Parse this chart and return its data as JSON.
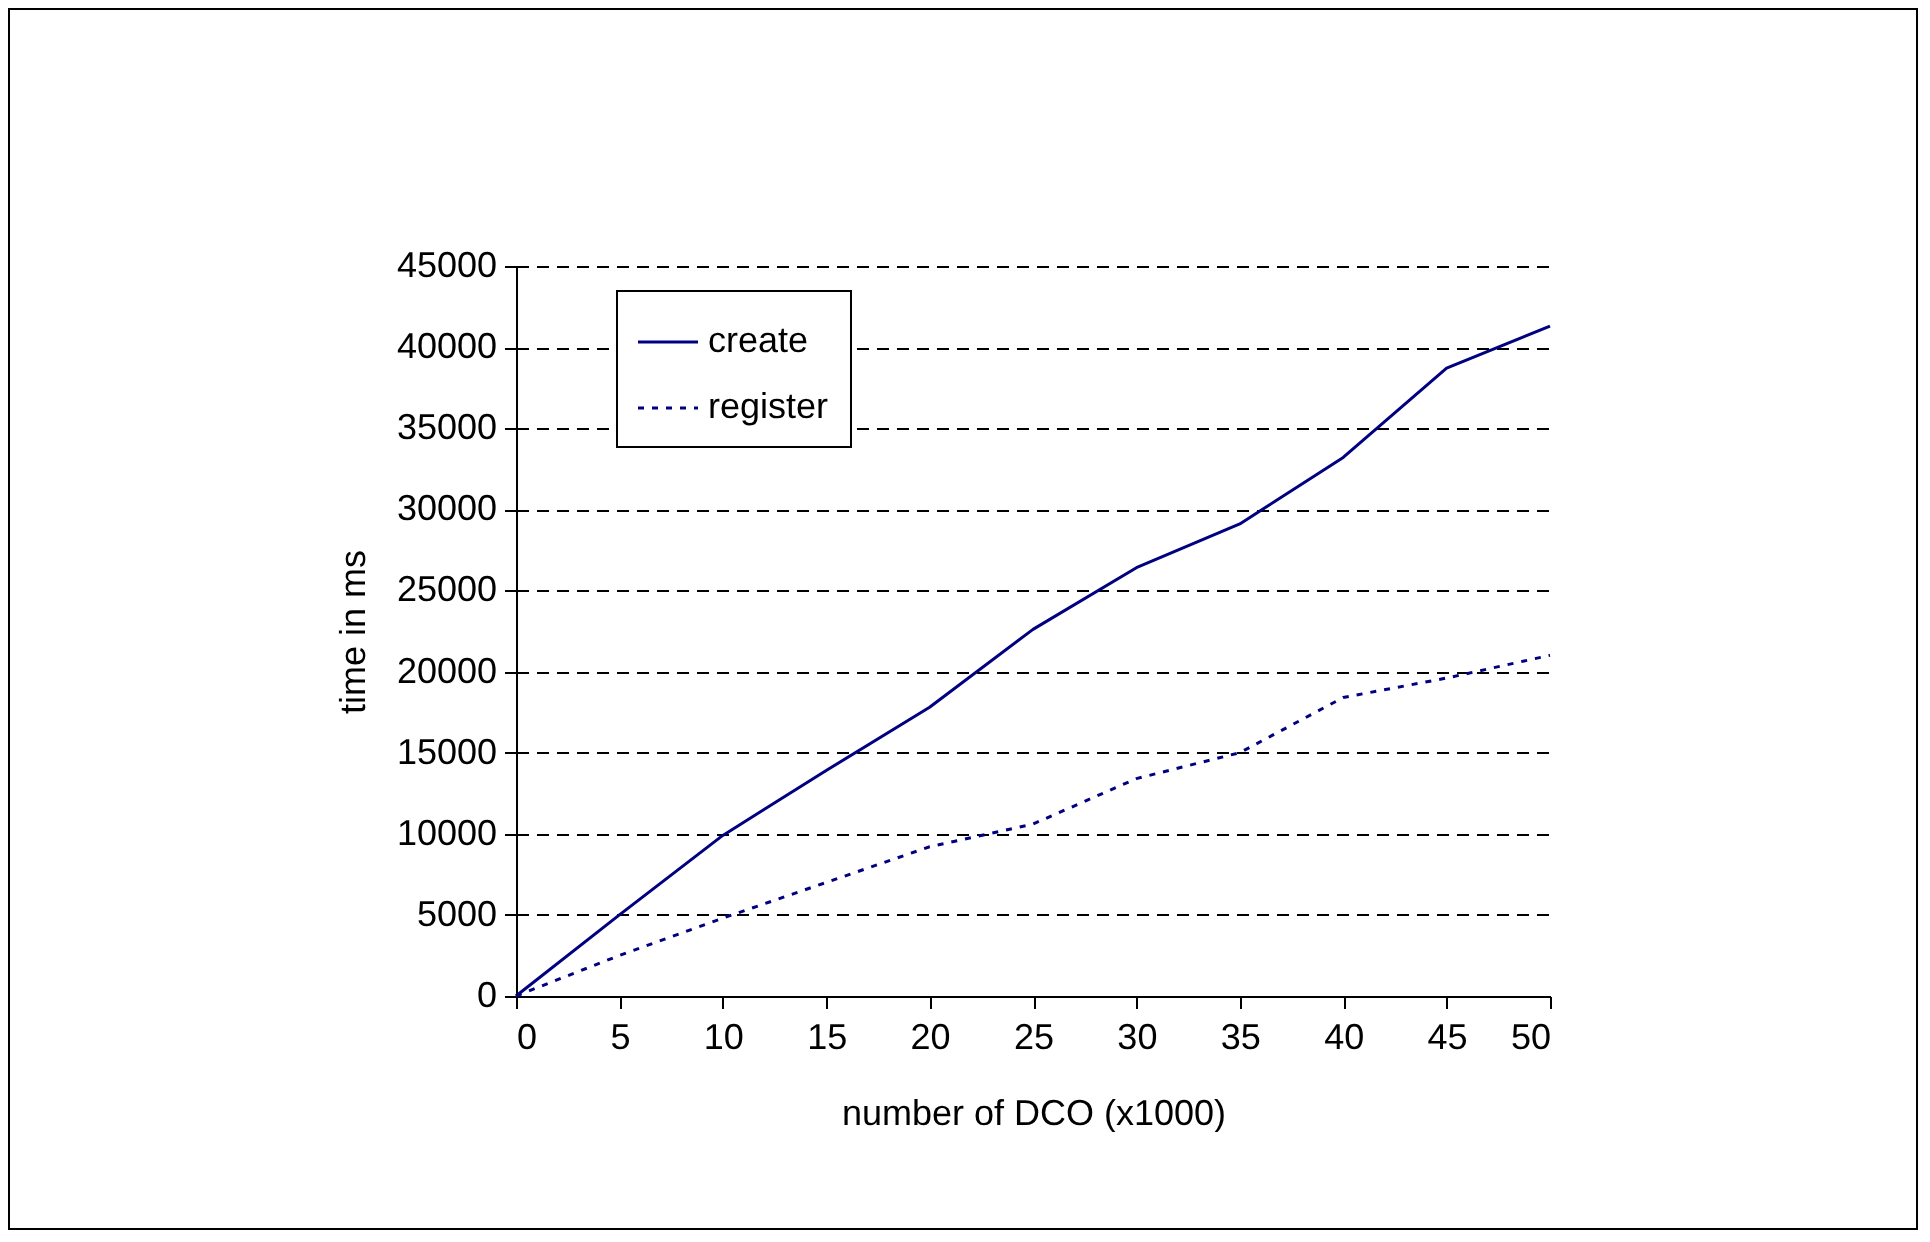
{
  "chart_data": {
    "type": "line",
    "xlabel": "number of DCO (x1000)",
    "ylabel": "time in ms",
    "x": [
      0,
      5,
      10,
      15,
      20,
      25,
      30,
      35,
      40,
      45,
      50
    ],
    "series": [
      {
        "name": "create",
        "color": "#000080",
        "line_style": "solid",
        "values": [
          0,
          5000,
          9900,
          13900,
          17800,
          22600,
          26400,
          29100,
          33200,
          38700,
          41300
        ]
      },
      {
        "name": "register",
        "color": "#000080",
        "line_style": "dotted",
        "values": [
          0,
          2500,
          4800,
          7000,
          9200,
          10600,
          13400,
          15000,
          18400,
          19600,
          21000
        ]
      }
    ],
    "xlim": [
      0,
      50
    ],
    "xticks": [
      0,
      5,
      10,
      15,
      20,
      25,
      30,
      35,
      40,
      45,
      50
    ],
    "ylim": [
      0,
      45000
    ],
    "yticks": [
      0,
      5000,
      10000,
      15000,
      20000,
      25000,
      30000,
      35000,
      40000,
      45000
    ],
    "grid": "y",
    "legend": "top left",
    "marker": "none"
  }
}
